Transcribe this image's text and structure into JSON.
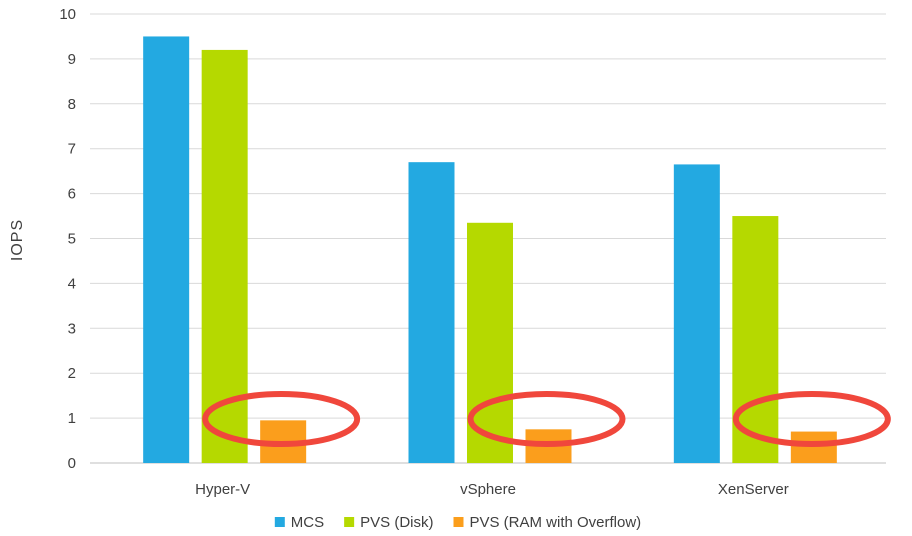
{
  "chart_data": {
    "type": "bar",
    "title": "",
    "xlabel": "",
    "ylabel": "IOPS",
    "ylim": [
      0,
      10
    ],
    "yticks": [
      0,
      1,
      2,
      3,
      4,
      5,
      6,
      7,
      8,
      9,
      10
    ],
    "grid": true,
    "legend_position": "bottom-center",
    "categories": [
      "Hyper-V",
      "vSphere",
      "XenServer"
    ],
    "series": [
      {
        "name": "MCS",
        "color": "#23a9e1",
        "values": [
          9.5,
          6.7,
          6.65
        ]
      },
      {
        "name": "PVS (Disk)",
        "color": "#b5d900",
        "values": [
          9.2,
          5.35,
          5.5
        ]
      },
      {
        "name": "PVS (RAM with Overflow)",
        "color": "#fb9e1c",
        "values": [
          0.95,
          0.75,
          0.7
        ]
      }
    ],
    "annotations": [
      {
        "type": "ellipse",
        "color": "#f0473c",
        "category": "Hyper-V",
        "series": "PVS (RAM with Overflow)"
      },
      {
        "type": "ellipse",
        "color": "#f0473c",
        "category": "vSphere",
        "series": "PVS (RAM with Overflow)"
      },
      {
        "type": "ellipse",
        "color": "#f0473c",
        "category": "XenServer",
        "series": "PVS (RAM with Overflow)"
      }
    ]
  }
}
